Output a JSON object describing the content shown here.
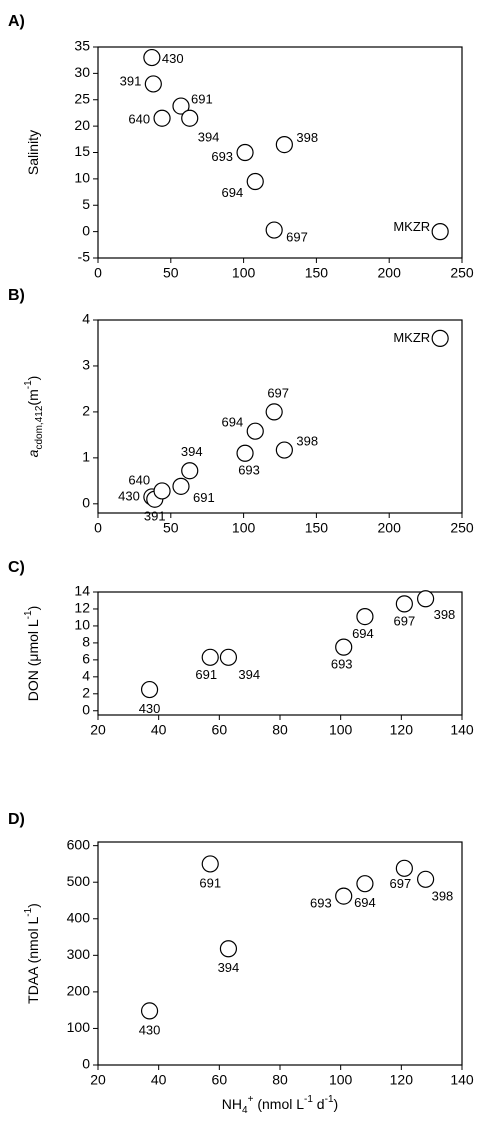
{
  "chart_data": [
    {
      "type": "scatter",
      "panel": "A)",
      "ylabel": [
        "Salinity"
      ],
      "color": "#000000",
      "x": [
        37,
        38,
        44,
        57,
        63,
        101,
        108,
        128,
        121,
        235
      ],
      "values": [
        33,
        28,
        21.5,
        23.8,
        21.5,
        15,
        9.5,
        16.5,
        0.3,
        0
      ],
      "point_labels": [
        "430",
        "391",
        "640",
        "691",
        "394",
        "693",
        "694",
        "398",
        "697",
        "MKZR"
      ],
      "xlim": [
        0,
        250
      ],
      "xticks": [
        0,
        50,
        100,
        150,
        200,
        250
      ],
      "ylim": [
        -5,
        35
      ],
      "yticks": [
        -5,
        0,
        5,
        10,
        15,
        20,
        25,
        30,
        35
      ]
    },
    {
      "type": "scatter",
      "panel": "B)",
      "ylabel": [
        "a",
        "cdom,412",
        "(m",
        "-1",
        ")"
      ],
      "color": "#000000",
      "x": [
        37,
        39,
        44,
        57,
        63,
        101,
        108,
        121,
        128,
        235
      ],
      "values": [
        0.15,
        0.1,
        0.28,
        0.38,
        0.72,
        1.1,
        1.58,
        2.0,
        1.17,
        3.6
      ],
      "point_labels": [
        "430",
        "391",
        "640",
        "691",
        "394",
        "693",
        "694",
        "697",
        "398",
        "MKZR"
      ],
      "xlim": [
        0,
        250
      ],
      "xticks": [
        0,
        50,
        100,
        150,
        200,
        250
      ],
      "ylim": [
        -0.2,
        4
      ],
      "yticks": [
        0,
        1,
        2,
        3,
        4
      ]
    },
    {
      "type": "scatter",
      "panel": "C)",
      "ylabel": [
        "DON (μmol L",
        "-1",
        ")"
      ],
      "color": "#000000",
      "x": [
        37,
        57,
        63,
        101,
        108,
        121,
        128
      ],
      "values": [
        2.5,
        6.3,
        6.3,
        7.5,
        11.1,
        12.6,
        13.2
      ],
      "point_labels": [
        "430",
        "691",
        "394",
        "693",
        "694",
        "697",
        "398"
      ],
      "xlim": [
        20,
        140
      ],
      "xticks": [
        20,
        40,
        60,
        80,
        100,
        120,
        140
      ],
      "ylim": [
        -0.5,
        14
      ],
      "yticks": [
        0,
        2,
        4,
        6,
        8,
        10,
        12,
        14
      ]
    },
    {
      "type": "scatter",
      "panel": "D)",
      "ylabel": [
        "TDAA (nmol L",
        "-1",
        ")"
      ],
      "color": "#000000",
      "xlabel": [
        "NH",
        "4",
        "+",
        " (nmol L",
        "-1",
        " d",
        "-1",
        ")"
      ],
      "x": [
        37,
        57,
        63,
        101,
        108,
        121,
        128
      ],
      "values": [
        148,
        550,
        318,
        462,
        496,
        538,
        508
      ],
      "point_labels": [
        "430",
        "691",
        "394",
        "693",
        "694",
        "697",
        "398"
      ],
      "xlim": [
        20,
        140
      ],
      "xticks": [
        20,
        40,
        60,
        80,
        100,
        120,
        140
      ],
      "ylim": [
        0,
        610
      ],
      "yticks": [
        0,
        100,
        200,
        300,
        400,
        500,
        600
      ]
    }
  ]
}
